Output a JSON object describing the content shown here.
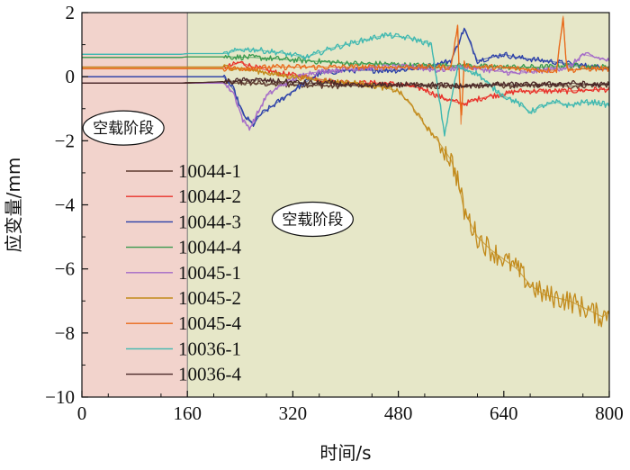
{
  "chart_data": {
    "type": "line",
    "xlabel": "时间/s",
    "ylabel": "应变量/mm",
    "xlim": [
      0,
      800
    ],
    "ylim": [
      -10,
      2
    ],
    "x_ticks": [
      0,
      160,
      320,
      480,
      640,
      800
    ],
    "y_ticks": [
      2,
      0,
      -2,
      -4,
      -6,
      -8,
      -10
    ],
    "grid": false,
    "legend_position": "left-middle",
    "regions": [
      {
        "x_start": 0,
        "x_end": 160,
        "color": "#F2D3CC"
      },
      {
        "x_start": 160,
        "x_end": 800,
        "color": "#E6E7C8"
      }
    ],
    "annotations": [
      {
        "text": "空载阶段",
        "x": 63,
        "y": -1.6
      },
      {
        "text": "空载阶段",
        "x": 350,
        "y": -4.45
      }
    ],
    "series": [
      {
        "name": "10044-1",
        "color": "#5C3A2E",
        "x": [
          0,
          150,
          160,
          220,
          240,
          260,
          300,
          340,
          380,
          420,
          460,
          500,
          540,
          580,
          620,
          660,
          700,
          740,
          780,
          800
        ],
        "y": [
          -0.2,
          -0.2,
          -0.18,
          -0.2,
          -0.2,
          -0.2,
          -0.25,
          -0.25,
          -0.3,
          -0.25,
          -0.3,
          -0.25,
          -0.3,
          -0.3,
          -0.25,
          -0.3,
          -0.25,
          -0.3,
          -0.25,
          -0.25
        ]
      },
      {
        "name": "10044-2",
        "color": "#E8312A",
        "x": [
          0,
          150,
          160,
          220,
          240,
          260,
          300,
          340,
          380,
          420,
          460,
          500,
          520,
          540,
          560,
          580,
          600,
          620,
          640,
          660,
          700,
          740,
          780,
          800
        ],
        "y": [
          0.3,
          0.3,
          0.3,
          0.3,
          0.45,
          0.3,
          0.1,
          0.0,
          -0.15,
          -0.2,
          -0.2,
          -0.3,
          -0.4,
          -0.6,
          -0.75,
          -0.85,
          -0.7,
          -0.6,
          -0.55,
          -0.45,
          -0.45,
          -0.45,
          -0.4,
          -0.4
        ]
      },
      {
        "name": "10044-3",
        "color": "#2A3FA8",
        "x": [
          0,
          150,
          160,
          215,
          230,
          245,
          260,
          270,
          290,
          310,
          330,
          360,
          400,
          440,
          480,
          520,
          560,
          580,
          600,
          620,
          640,
          660,
          700,
          740,
          780,
          800
        ],
        "y": [
          0.0,
          0.0,
          0.0,
          0.0,
          -0.4,
          -1.2,
          -1.5,
          -1.2,
          -0.9,
          -0.6,
          -0.3,
          0.1,
          0.2,
          0.2,
          0.2,
          0.3,
          0.5,
          1.5,
          0.5,
          0.6,
          0.7,
          0.6,
          0.5,
          0.4,
          0.3,
          0.3
        ]
      },
      {
        "name": "10044-4",
        "color": "#3A9A4E",
        "x": [
          0,
          150,
          160,
          220,
          260,
          300,
          340,
          380,
          420,
          460,
          500,
          540,
          580,
          620,
          660,
          700,
          740,
          780,
          800
        ],
        "y": [
          0.6,
          0.6,
          0.62,
          0.62,
          0.6,
          0.55,
          0.5,
          0.45,
          0.4,
          0.4,
          0.35,
          0.35,
          0.35,
          0.3,
          0.3,
          0.3,
          0.35,
          0.3,
          0.3
        ]
      },
      {
        "name": "10045-1",
        "color": "#A46AC8",
        "x": [
          0,
          150,
          160,
          215,
          230,
          245,
          255,
          265,
          280,
          300,
          320,
          340,
          380,
          420,
          460,
          500,
          540,
          580,
          620,
          660,
          700,
          740,
          760,
          780,
          800
        ],
        "y": [
          -0.2,
          -0.2,
          -0.2,
          -0.2,
          -0.5,
          -1.4,
          -1.6,
          -1.2,
          -0.6,
          -0.3,
          -0.1,
          0.1,
          0.2,
          0.25,
          0.3,
          0.3,
          0.2,
          0.3,
          0.2,
          0.1,
          0.2,
          0.3,
          0.7,
          0.6,
          0.5
        ]
      },
      {
        "name": "10045-2",
        "color": "#C28A1A",
        "x": [
          0,
          150,
          160,
          220,
          260,
          300,
          340,
          380,
          420,
          460,
          480,
          500,
          520,
          540,
          560,
          570,
          580,
          600,
          620,
          640,
          660,
          680,
          700,
          720,
          740,
          760,
          780,
          790,
          800
        ],
        "y": [
          0.3,
          0.3,
          0.3,
          0.3,
          0.2,
          0.05,
          -0.05,
          -0.15,
          -0.2,
          -0.35,
          -0.45,
          -0.9,
          -1.5,
          -2.0,
          -2.6,
          -3.2,
          -4.2,
          -5.0,
          -5.4,
          -5.7,
          -6.0,
          -6.5,
          -6.8,
          -6.9,
          -7.0,
          -7.2,
          -7.4,
          -7.5,
          -7.3
        ]
      },
      {
        "name": "10045-4",
        "color": "#E86A1A",
        "x": [
          0,
          150,
          160,
          220,
          300,
          400,
          500,
          560,
          570,
          575,
          580,
          590,
          620,
          660,
          700,
          720,
          730,
          735,
          740,
          760,
          800
        ],
        "y": [
          0.25,
          0.25,
          0.25,
          0.25,
          0.3,
          0.3,
          0.3,
          0.3,
          1.6,
          -1.5,
          0.4,
          0.3,
          0.3,
          0.25,
          0.2,
          0.2,
          1.9,
          0.3,
          0.2,
          0.25,
          0.25
        ]
      },
      {
        "name": "10036-1",
        "color": "#3EB8B0",
        "x": [
          0,
          150,
          160,
          220,
          240,
          260,
          280,
          300,
          340,
          380,
          420,
          460,
          500,
          530,
          550,
          570,
          600,
          620,
          640,
          660,
          680,
          700,
          720,
          740,
          760,
          780,
          800
        ],
        "y": [
          0.7,
          0.7,
          0.72,
          0.72,
          0.85,
          0.85,
          0.8,
          0.75,
          0.6,
          0.9,
          1.1,
          1.3,
          1.2,
          1.0,
          -1.8,
          0.3,
          0.1,
          -0.3,
          -0.6,
          -0.8,
          -1.1,
          -0.9,
          -0.8,
          -0.9,
          -0.8,
          -0.8,
          -0.9
        ]
      },
      {
        "name": "10036-4",
        "color": "#4A2828",
        "x": [
          0,
          150,
          160,
          220,
          260,
          300,
          340,
          380,
          420,
          460,
          500,
          540,
          580,
          620,
          660,
          700,
          740,
          780,
          800
        ],
        "y": [
          -0.2,
          -0.2,
          -0.2,
          -0.15,
          -0.1,
          -0.15,
          -0.2,
          -0.2,
          -0.3,
          -0.25,
          -0.25,
          -0.25,
          -0.3,
          -0.25,
          -0.25,
          -0.25,
          -0.2,
          -0.25,
          -0.25
        ]
      }
    ]
  }
}
